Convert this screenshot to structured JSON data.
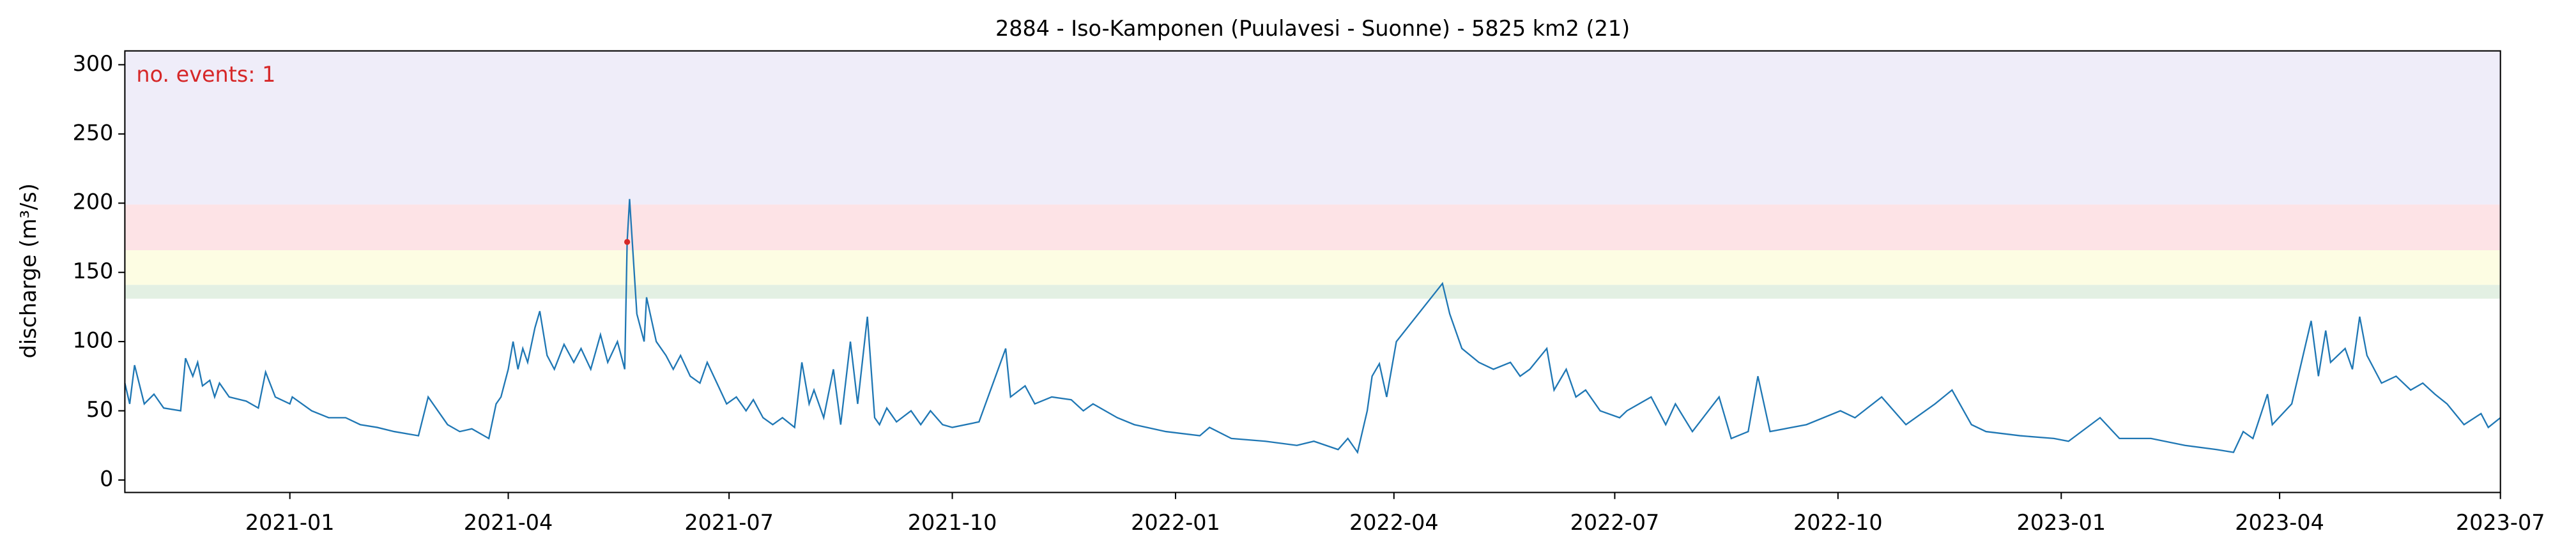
{
  "chart_data": {
    "type": "line",
    "title": "2884 - Iso-Kamponen (Puulavesi - Suonne) - 5825 km2 (21)",
    "ylabel": "discharge (m³/s)",
    "annotation": "no. events: 1",
    "annotation_color": "#d62728",
    "color": "#1f77b4",
    "xlim": [
      18560,
      19539
    ],
    "ylim": [
      -9,
      310
    ],
    "xticks": [
      {
        "value": 18628,
        "label": "2021-01"
      },
      {
        "value": 18718,
        "label": "2021-04"
      },
      {
        "value": 18809,
        "label": "2021-07"
      },
      {
        "value": 18901,
        "label": "2021-10"
      },
      {
        "value": 18993,
        "label": "2022-01"
      },
      {
        "value": 19083,
        "label": "2022-04"
      },
      {
        "value": 19174,
        "label": "2022-07"
      },
      {
        "value": 19266,
        "label": "2022-10"
      },
      {
        "value": 19358,
        "label": "2023-01"
      },
      {
        "value": 19448,
        "label": "2023-04"
      },
      {
        "value": 19539,
        "label": "2023-07"
      }
    ],
    "yticks": [
      0,
      50,
      100,
      150,
      200,
      250,
      300
    ],
    "bands": [
      {
        "from": 131,
        "to": 141,
        "color": "#e3f0e3"
      },
      {
        "from": 141,
        "to": 166,
        "color": "#fdfde3"
      },
      {
        "from": 166,
        "to": 199,
        "color": "#fde3e6"
      },
      {
        "from": 199,
        "to": 310,
        "color": "#efedf9"
      }
    ],
    "events": {
      "x": [
        18767
      ],
      "values": [
        172
      ],
      "color": "#d62728"
    },
    "x": [
      18560,
      18562,
      18564,
      18568,
      18572,
      18576,
      18583,
      18585,
      18588,
      18590,
      18592,
      18595,
      18597,
      18599,
      18603,
      18610,
      18615,
      18618,
      18622,
      18628,
      18629,
      18637,
      18644,
      18651,
      18657,
      18664,
      18671,
      18681,
      18685,
      18689,
      18693,
      18698,
      18703,
      18710,
      18713,
      18715,
      18718,
      18720,
      18722,
      18724,
      18726,
      18729,
      18731,
      18734,
      18737,
      18741,
      18745,
      18748,
      18752,
      18756,
      18759,
      18763,
      18766,
      18767,
      18768,
      18771,
      18774,
      18775,
      18779,
      18783,
      18786,
      18789,
      18793,
      18797,
      18800,
      18804,
      18808,
      18812,
      18816,
      18819,
      18823,
      18827,
      18831,
      18836,
      18839,
      18842,
      18844,
      18848,
      18852,
      18855,
      18859,
      18862,
      18866,
      18869,
      18871,
      18874,
      18878,
      18884,
      18888,
      18892,
      18897,
      18901,
      18912,
      18923,
      18925,
      18931,
      18935,
      18942,
      18950,
      18955,
      18959,
      18969,
      18976,
      18989,
      19003,
      19007,
      19016,
      19030,
      19043,
      19050,
      19060,
      19064,
      19068,
      19072,
      19074,
      19077,
      19080,
      19084,
      19103,
      19106,
      19111,
      19118,
      19124,
      19131,
      19135,
      19139,
      19146,
      19149,
      19154,
      19158,
      19162,
      19168,
      19176,
      19179,
      19189,
      19195,
      19199,
      19206,
      19217,
      19222,
      19229,
      19233,
      19238,
      19253,
      19267,
      19273,
      19284,
      19294,
      19306,
      19313,
      19321,
      19327,
      19341,
      19355,
      19361,
      19374,
      19382,
      19395,
      19409,
      19422,
      19429,
      19433,
      19437,
      19443,
      19445,
      19453,
      19461,
      19464,
      19467,
      19469,
      19475,
      19478,
      19481,
      19484,
      19490,
      19496,
      19502,
      19507,
      19512,
      19517,
      19524,
      19531,
      19534,
      19539
    ],
    "values": [
      70,
      55,
      83,
      55,
      62,
      52,
      50,
      88,
      75,
      85,
      68,
      72,
      60,
      70,
      60,
      57,
      52,
      78,
      60,
      55,
      60,
      50,
      45,
      45,
      40,
      38,
      35,
      32,
      60,
      50,
      40,
      35,
      37,
      30,
      55,
      60,
      80,
      100,
      80,
      95,
      85,
      110,
      122,
      90,
      80,
      98,
      85,
      95,
      80,
      105,
      85,
      100,
      80,
      172,
      203,
      120,
      100,
      132,
      100,
      90,
      80,
      90,
      75,
      70,
      85,
      70,
      55,
      60,
      50,
      58,
      45,
      40,
      45,
      38,
      85,
      55,
      65,
      45,
      80,
      40,
      100,
      55,
      118,
      45,
      40,
      52,
      42,
      50,
      40,
      50,
      40,
      38,
      42,
      95,
      60,
      68,
      55,
      60,
      58,
      50,
      55,
      45,
      40,
      35,
      32,
      38,
      30,
      28,
      25,
      28,
      22,
      30,
      20,
      50,
      75,
      84,
      60,
      100,
      142,
      120,
      95,
      85,
      80,
      85,
      75,
      80,
      95,
      65,
      80,
      60,
      65,
      50,
      45,
      50,
      60,
      40,
      55,
      35,
      60,
      30,
      35,
      75,
      35,
      40,
      50,
      45,
      60,
      40,
      55,
      65,
      40,
      35,
      32,
      30,
      28,
      45,
      30,
      30,
      25,
      22,
      20,
      35,
      30,
      62,
      40,
      55,
      115,
      75,
      108,
      85,
      95,
      80,
      118,
      90,
      70,
      75,
      65,
      70,
      62,
      55,
      40,
      48,
      38,
      45
    ]
  }
}
